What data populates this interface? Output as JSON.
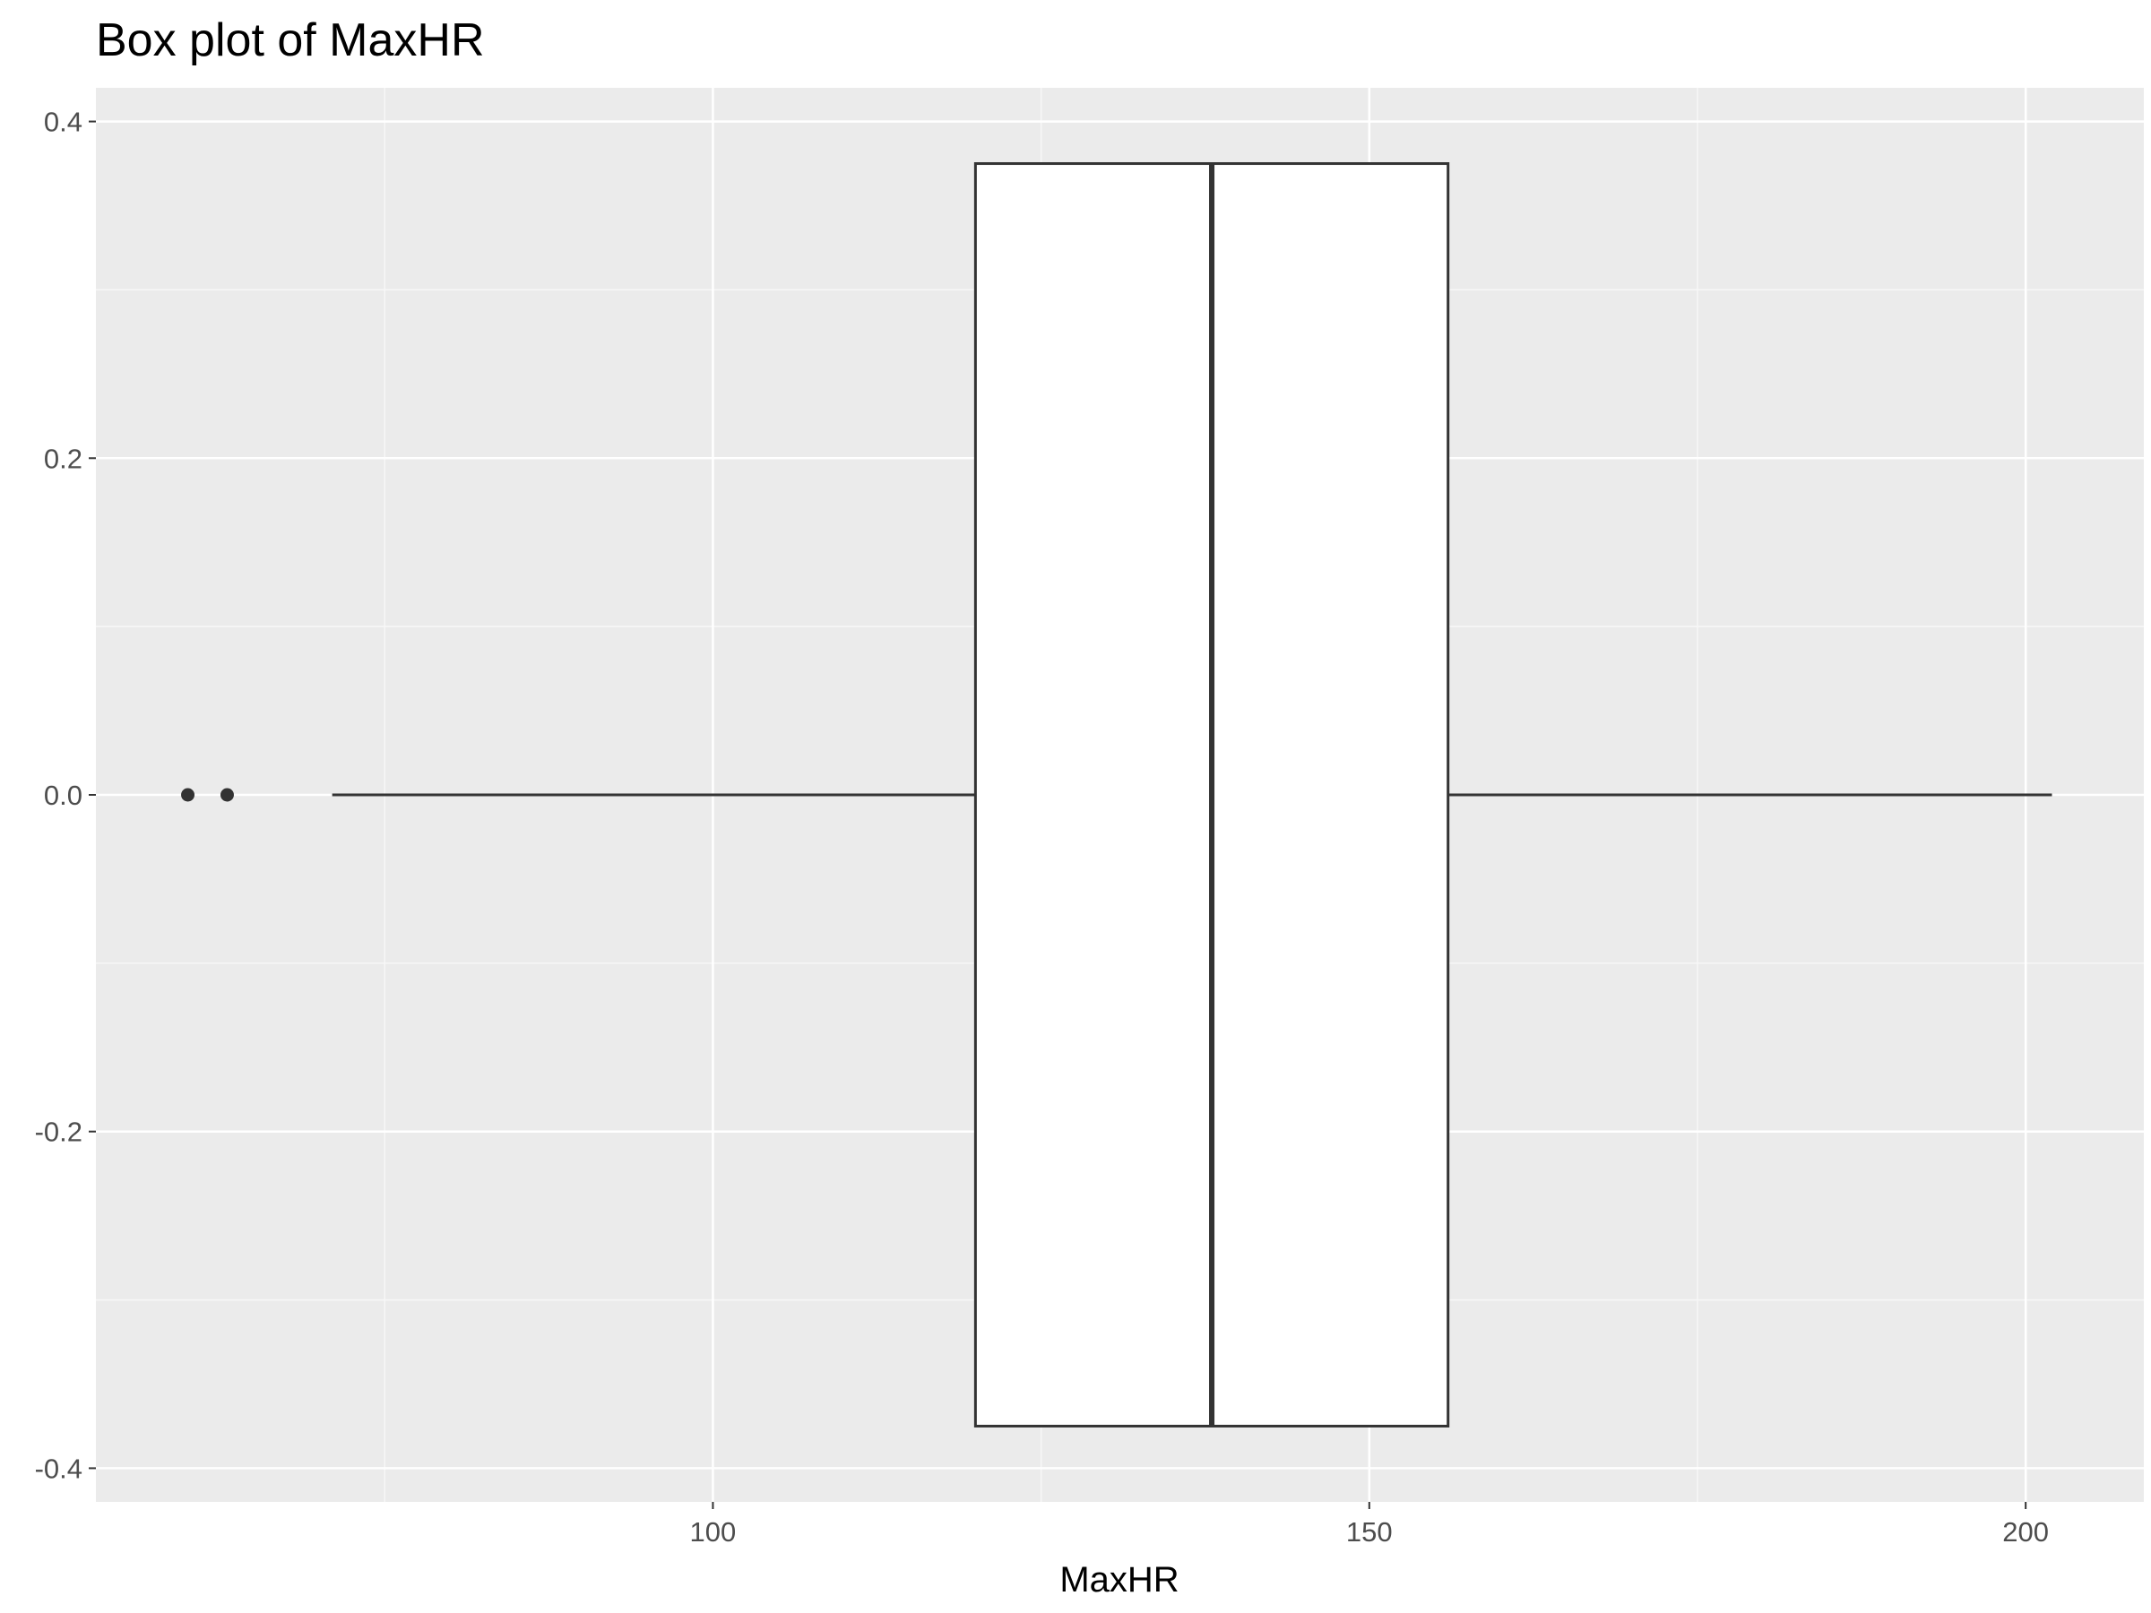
{
  "chart_data": {
    "type": "boxplot",
    "title": "Box plot of MaxHR",
    "xlabel": "MaxHR",
    "ylabel": "",
    "xlim": [
      53,
      209
    ],
    "ylim": [
      -0.4,
      0.4
    ],
    "x_ticks": [
      100,
      150,
      200
    ],
    "x_tick_labels": [
      "100",
      "150",
      "200"
    ],
    "y_ticks": [
      -0.4,
      -0.2,
      0.0,
      0.2,
      0.4
    ],
    "y_tick_labels": [
      "-0.4",
      "-0.2",
      "0.0",
      "0.2",
      "0.4"
    ],
    "grid": true,
    "box": {
      "whisker_low": 71,
      "q1": 120,
      "median": 138,
      "q3": 156,
      "whisker_high": 202,
      "outliers": [
        60,
        63
      ],
      "y_center": 0.0,
      "y_extent": [
        -0.375,
        0.375
      ]
    },
    "colors": {
      "panel_background": "#ebebeb",
      "grid_major": "#ffffff",
      "grid_minor": "#f7f7f7",
      "box_fill": "#ffffff",
      "box_stroke": "#333333",
      "outlier": "#333333"
    }
  }
}
